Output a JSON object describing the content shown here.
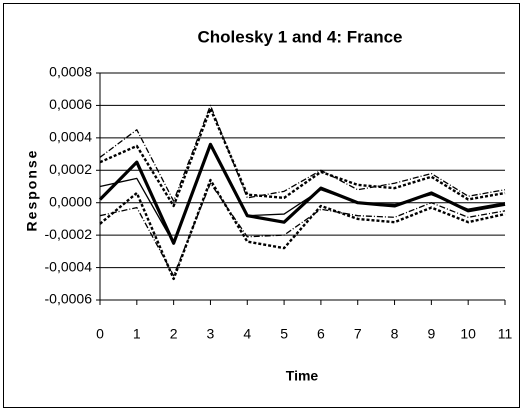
{
  "chart_data": {
    "type": "line",
    "title": "Cholesky 1 and 4: France",
    "xlabel": "Time",
    "ylabel": "Response",
    "x": [
      0,
      1,
      2,
      3,
      4,
      5,
      6,
      7,
      8,
      9,
      10,
      11
    ],
    "xlim": [
      0,
      11
    ],
    "xticks": [
      0,
      1,
      2,
      3,
      4,
      5,
      6,
      7,
      8,
      9,
      10,
      11
    ],
    "ylim": [
      -0.0006,
      0.0008
    ],
    "yticks": [
      {
        "value": -0.0006,
        "label": "-0,0006"
      },
      {
        "value": -0.0004,
        "label": "-0,0004"
      },
      {
        "value": -0.0002,
        "label": "-0,0002"
      },
      {
        "value": 0,
        "label": "0,0000"
      },
      {
        "value": 0.0002,
        "label": "0,0002"
      },
      {
        "value": 0.0004,
        "label": "0,0004"
      },
      {
        "value": 0.0006,
        "label": "0,0006"
      },
      {
        "value": 0.0008,
        "label": "0,0008"
      }
    ],
    "grid": true,
    "series": [
      {
        "color": "#000000",
        "style": "dashdot",
        "values": [
          0.00028,
          0.00045,
          1e-05,
          0.0006,
          3e-05,
          7e-05,
          0.0002,
          8e-05,
          0.00012,
          0.00018,
          4e-05,
          8e-05
        ]
      },
      {
        "color": "#000000",
        "style": "dashdot",
        "values": [
          -8e-05,
          -3e-05,
          -0.00045,
          0.00012,
          -0.00021,
          -0.0002,
          -4e-05,
          -8e-05,
          -9e-05,
          0.0,
          -9e-05,
          -5e-05
        ]
      },
      {
        "color": "#000000",
        "style": "dashed",
        "values": [
          0.00025,
          0.00035,
          -2e-05,
          0.00058,
          5e-05,
          3e-05,
          0.00019,
          0.00011,
          9e-05,
          0.00016,
          2e-05,
          6e-05
        ]
      },
      {
        "color": "#000000",
        "style": "dashed",
        "values": [
          -0.00013,
          6e-05,
          -0.00047,
          0.00014,
          -0.00024,
          -0.00028,
          -2e-05,
          -0.0001,
          -0.00012,
          -3e-05,
          -0.00012,
          -7e-05
        ]
      },
      {
        "color": "#000000",
        "style": "thin",
        "values": [
          0.0001,
          0.00015,
          -0.00025,
          0.00035,
          -8e-05,
          -7e-05,
          8e-05,
          0.0,
          -1e-05,
          5e-05,
          -4e-05,
          0.0
        ]
      },
      {
        "color": "#000000",
        "style": "thick",
        "values": [
          2e-05,
          0.00025,
          -0.00025,
          0.00036,
          -8e-05,
          -0.00012,
          9e-05,
          0.0,
          -2e-05,
          6e-05,
          -5e-05,
          -1e-05
        ]
      }
    ]
  }
}
